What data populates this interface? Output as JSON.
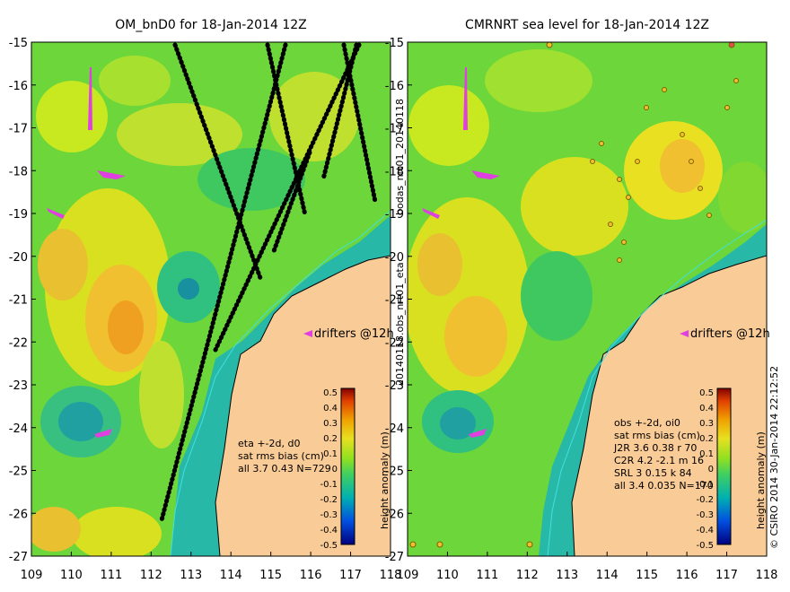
{
  "left_panel": {
    "title": "OM_bnD0 for 18-Jan-2014 12Z",
    "stats": [
      "eta +-2d, d0",
      "sat rms bias (cm)",
      "all 3.7 0.43 N=729"
    ],
    "drifter_label": "drifters @12h"
  },
  "right_panel": {
    "title": "CMRNRT sea level  for 18-Jan-2014 12Z",
    "stats": [
      "obs +-2d, oi0",
      "sat rms bias (cm)",
      "J2R   3.6 0.38 r 70",
      "C2R   4.2 -2.1 m 16",
      "SRL   3 0.15 k 84",
      "all   3.4 0.035 N=170"
    ],
    "drifter_label": "drifters @12h"
  },
  "middle_vertical_label_top": "bodas_nrt01_20140118",
  "middle_vertical_label_bottom": "20140118.obs_nrt01_eta",
  "colorbar_label": "height anomaly (m)",
  "colorbar_ticks": [
    "0.5",
    "0.4",
    "0.3",
    "0.2",
    "0.1",
    "0",
    "-0.1",
    "-0.2",
    "-0.3",
    "-0.4",
    "-0.5"
  ],
  "credit": "© CSIRO 2014   30-Jan-2014 22:12:52",
  "axes": {
    "x_ticks": [
      "109",
      "110",
      "111",
      "112",
      "113",
      "114",
      "115",
      "116",
      "117",
      "118"
    ],
    "y_ticks": [
      "-15",
      "-16",
      "-17",
      "-18",
      "-19",
      "-20",
      "-21",
      "-22",
      "-23",
      "-24",
      "-25",
      "-26",
      "-27"
    ],
    "lon_range": [
      109,
      118
    ],
    "lat_range": [
      -27,
      -15
    ]
  },
  "colors": {
    "land": "#f9cb96",
    "field_mid": "#6cd63a",
    "field_high": "#e8b020",
    "field_low": "#24b49c",
    "drifter": "#e040e0",
    "coast": "#000000",
    "isobath": "#40e0e0"
  }
}
